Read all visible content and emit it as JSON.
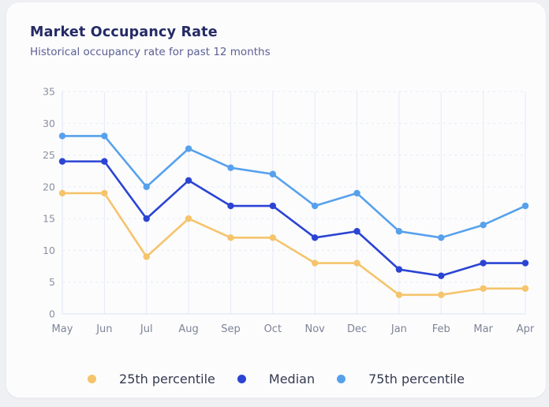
{
  "header": {
    "title": "Market Occupancy Rate",
    "subtitle": "Historical occupancy rate for past 12 months"
  },
  "chart_data": {
    "type": "line",
    "title": "Market Occupancy Rate",
    "subtitle": "Historical occupancy rate for past 12 months",
    "x": [
      "May",
      "Jun",
      "Jul",
      "Aug",
      "Sep",
      "Oct",
      "Nov",
      "Dec",
      "Jan",
      "Feb",
      "Mar",
      "Apr"
    ],
    "series": [
      {
        "name": "25th percentile",
        "color": "#f5c46b",
        "values": [
          19,
          19,
          9,
          15,
          12,
          12,
          8,
          8,
          3,
          3,
          4,
          4
        ]
      },
      {
        "name": "Median",
        "color": "#2b44d4",
        "values": [
          24,
          24,
          15,
          21,
          17,
          17,
          12,
          13,
          7,
          6,
          8,
          8
        ]
      },
      {
        "name": "75th percentile",
        "color": "#57a1ec",
        "values": [
          28,
          28,
          20,
          26,
          23,
          22,
          17,
          19,
          13,
          12,
          14,
          17
        ]
      }
    ],
    "xlabel": "",
    "ylabel": "",
    "ylim": [
      0,
      35
    ],
    "yticks": [
      0,
      5,
      10,
      15,
      20,
      25,
      30,
      35
    ],
    "grid": true,
    "legend_position": "bottom"
  },
  "colors": {
    "grid": "#e6eaf8",
    "axis_line": "#dde4f5",
    "y_tick_label": "#8b90a1",
    "x_tick_label": "#7e8496",
    "title": "#252b66",
    "subtitle": "#5a5f92",
    "card_bg": "#fcfcfd",
    "page_bg": "#eef0f3"
  }
}
